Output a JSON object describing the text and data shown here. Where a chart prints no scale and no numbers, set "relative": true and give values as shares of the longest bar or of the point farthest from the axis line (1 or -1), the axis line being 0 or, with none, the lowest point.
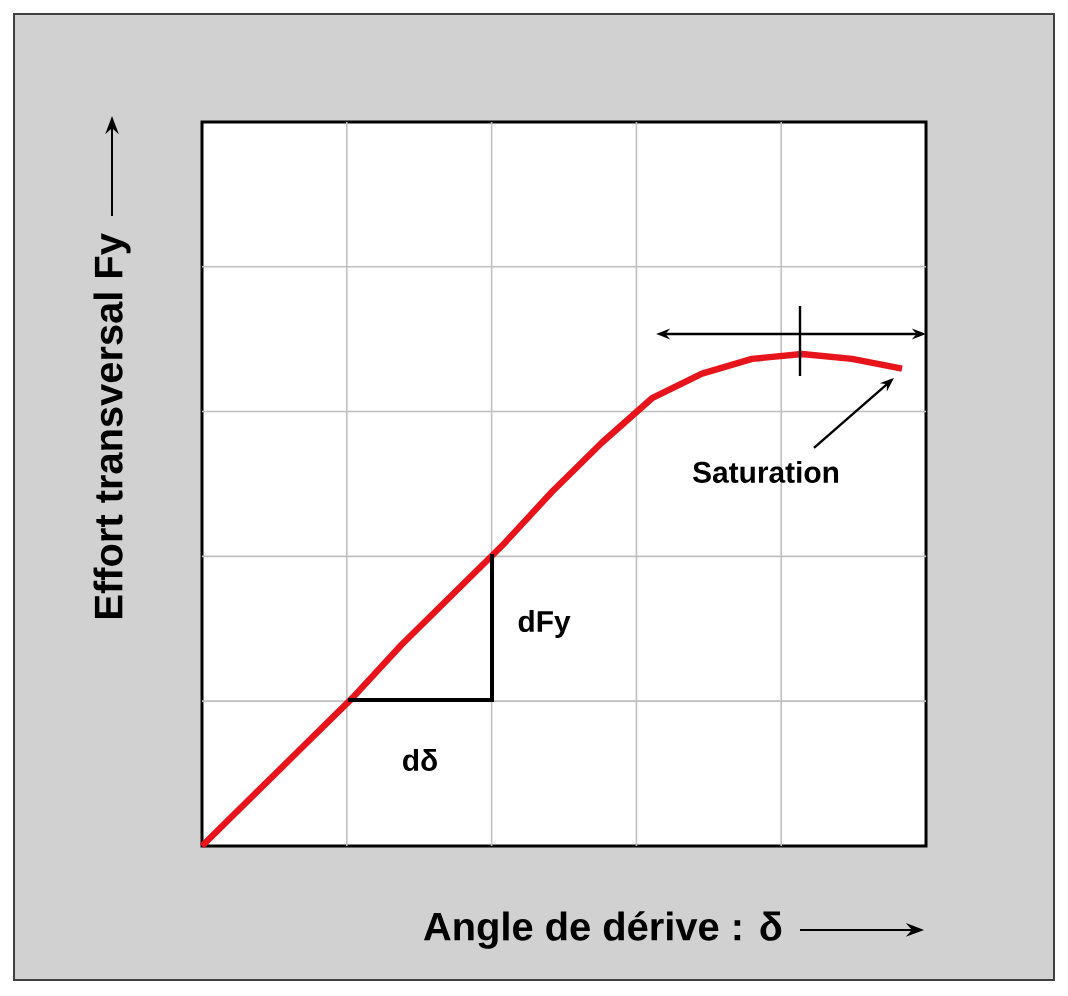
{
  "chart_data": {
    "type": "line",
    "relative": true,
    "xlabel": "Angle de dérive : δ",
    "ylabel": "Effort transversal Fy",
    "categories": [
      null,
      null,
      null,
      null,
      null,
      null,
      null,
      null,
      null,
      null,
      null,
      null,
      null,
      null,
      null
    ],
    "series": [
      {
        "color": "#e8141b",
        "values": [
          0,
          0.1,
          0.2,
          0.3,
          0.41,
          0.51,
          0.61,
          0.72,
          0.82,
          0.91,
          0.96,
          0.99,
          1,
          0.99,
          0.97
        ]
      }
    ],
    "grid": true,
    "marker": "none",
    "line_style": "solid",
    "annotations": [
      "dFy",
      "dδ",
      "Saturation"
    ]
  }
}
